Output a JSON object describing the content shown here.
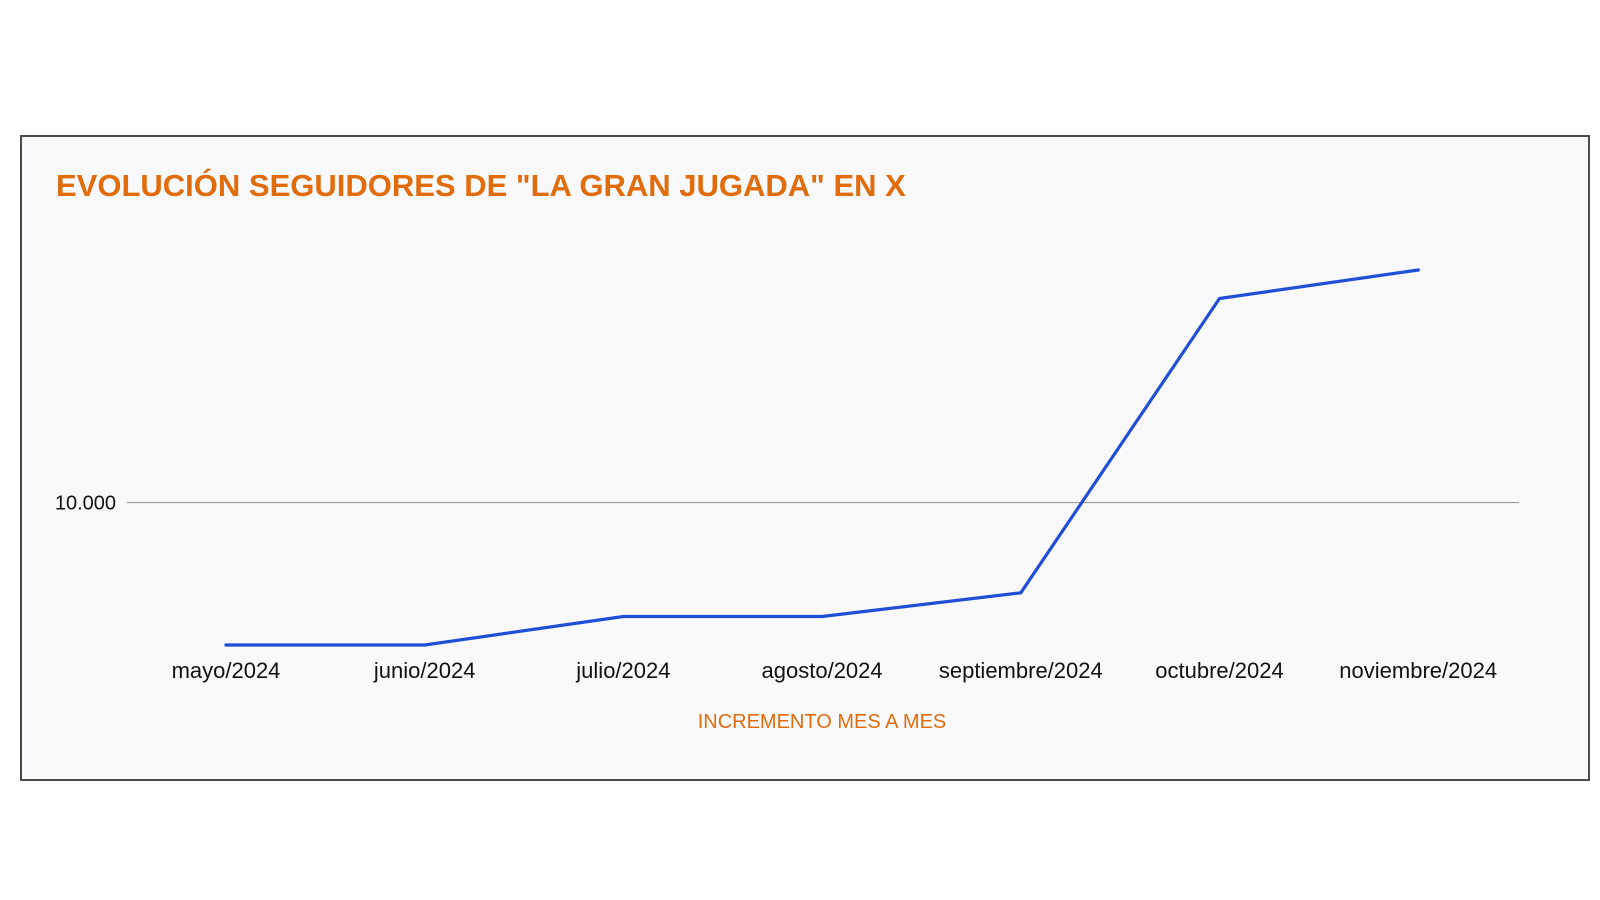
{
  "colors": {
    "title": "#e06c0b",
    "line": "#1f4fd6",
    "axis_text": "#111111",
    "gridline": "#9a9a9a",
    "background": "#f9f9fc",
    "border": "#4a4a4a"
  },
  "chart_data": {
    "type": "line",
    "title": "EVOLUCIÓN SEGUIDORES DE \"LA GRAN JUGADA\" EN X",
    "xlabel": "INCREMENTO MES A MES",
    "ylabel": "",
    "categories": [
      "mayo/2024",
      "junio/2024",
      "julio/2024",
      "agosto/2024",
      "septiembre/2024",
      "octubre/2024",
      "noviembre/2024"
    ],
    "series": [
      {
        "values": [
          8500,
          8500,
          8800,
          8800,
          9050,
          12150,
          12450
        ]
      }
    ],
    "y_ticks": [
      10000
    ],
    "y_tick_labels": [
      "10.000"
    ],
    "ylim": [
      8500,
      12850
    ],
    "grid": true,
    "legend": "none"
  }
}
